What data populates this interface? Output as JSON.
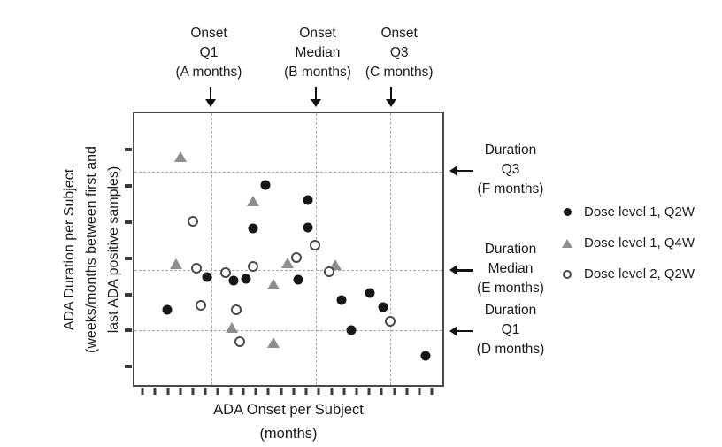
{
  "figure": {
    "y_axis": {
      "label_lines": [
        "ADA Duration per Subject",
        "(weeks/months between first and",
        "last ADA positive samples)"
      ],
      "tick_count": 7
    },
    "x_axis": {
      "label_lines": [
        "ADA Onset per Subject",
        "(months)"
      ],
      "tick_count": 24
    },
    "top_annotations": [
      {
        "lines": [
          "Onset",
          "Q1",
          "(A months)"
        ]
      },
      {
        "lines": [
          "Onset",
          "Median",
          "(B months)"
        ]
      },
      {
        "lines": [
          "Onset",
          "Q3",
          "(C months)"
        ]
      }
    ],
    "right_annotations": [
      {
        "lines": [
          "Duration",
          "Q3",
          "(F months)"
        ]
      },
      {
        "lines": [
          "Duration",
          "Median",
          "(E months)"
        ]
      },
      {
        "lines": [
          "Duration",
          "Q1",
          "(D months)"
        ]
      }
    ],
    "legend": {
      "items": [
        {
          "marker": "filled-circle",
          "label": "Dose level 1, Q2W"
        },
        {
          "marker": "filled-triangle",
          "label": "Dose level 1, Q4W"
        },
        {
          "marker": "open-circle",
          "label": "Dose level 2, Q2W"
        }
      ]
    }
  },
  "chart_data": {
    "type": "scatter",
    "title": "",
    "xlabel": "ADA Onset per Subject (months)",
    "ylabel": "ADA Duration per Subject (weeks/months between first and last ADA positive samples)",
    "axis_numeric_labels": "none - ticks are unlabeled; quartile positions shown as reference lines",
    "coordinate_units": "percent of plot area; x measured from left edge, y from top edge",
    "series": [
      {
        "name": "Dose level 1, Q2W",
        "marker": "filled-circle",
        "color": "#161616",
        "points": [
          [
            42.6,
            26.4
          ],
          [
            56.3,
            31.8
          ],
          [
            38.4,
            42.4
          ],
          [
            56.3,
            42.1
          ],
          [
            23.6,
            60.1
          ],
          [
            32.1,
            61.7
          ],
          [
            36.1,
            60.8
          ],
          [
            53.1,
            61.4
          ],
          [
            10.5,
            72.3
          ],
          [
            67.3,
            68.8
          ],
          [
            76.4,
            66.2
          ],
          [
            80.7,
            71.4
          ],
          [
            70.5,
            79.7
          ],
          [
            94.6,
            89.4
          ]
        ]
      },
      {
        "name": "Dose level 1, Q4W",
        "marker": "filled-triangle",
        "color": "#8e8e8e",
        "points": [
          [
            14.8,
            16.4
          ],
          [
            38.4,
            32.5
          ],
          [
            13.6,
            55.6
          ],
          [
            49.7,
            55.3
          ],
          [
            65.1,
            55.9
          ],
          [
            45.2,
            63.3
          ],
          [
            31.5,
            79.1
          ],
          [
            45.2,
            84.6
          ]
        ]
      },
      {
        "name": "Dose level 2, Q2W",
        "marker": "open-circle",
        "color": "#4a4a4a",
        "points": [
          [
            19.0,
            39.9
          ],
          [
            20.2,
            56.9
          ],
          [
            29.5,
            58.5
          ],
          [
            38.6,
            56.3
          ],
          [
            52.6,
            53.1
          ],
          [
            58.5,
            48.6
          ],
          [
            63.1,
            58.2
          ],
          [
            21.6,
            70.7
          ],
          [
            33.0,
            72.3
          ],
          [
            34.1,
            83.9
          ],
          [
            83.0,
            76.5
          ]
        ]
      }
    ],
    "reference_lines": {
      "vertical_pct": [
        25.0,
        58.8,
        83.0
      ],
      "vertical_labels": [
        "Onset Q1 (A months)",
        "Onset Median (B months)",
        "Onset Q3 (C months)"
      ],
      "horizontal_pct": [
        21.5,
        57.6,
        79.7
      ],
      "horizontal_labels": [
        "Duration Q3 (F months)",
        "Duration Median (E months)",
        "Duration Q1 (D months)"
      ],
      "style": "dashed gray"
    },
    "x_tick_count": 24,
    "y_tick_count": 7,
    "legend_position": "outside right"
  },
  "colors": {
    "filled_marker": "#161616",
    "triangle_marker": "#8e8e8e",
    "open_marker_stroke": "#4a4a4a",
    "grid_line": "#a9a9a9",
    "plot_border": "#4a4a4a",
    "text": "#1a1a1a",
    "background": "#ffffff"
  }
}
